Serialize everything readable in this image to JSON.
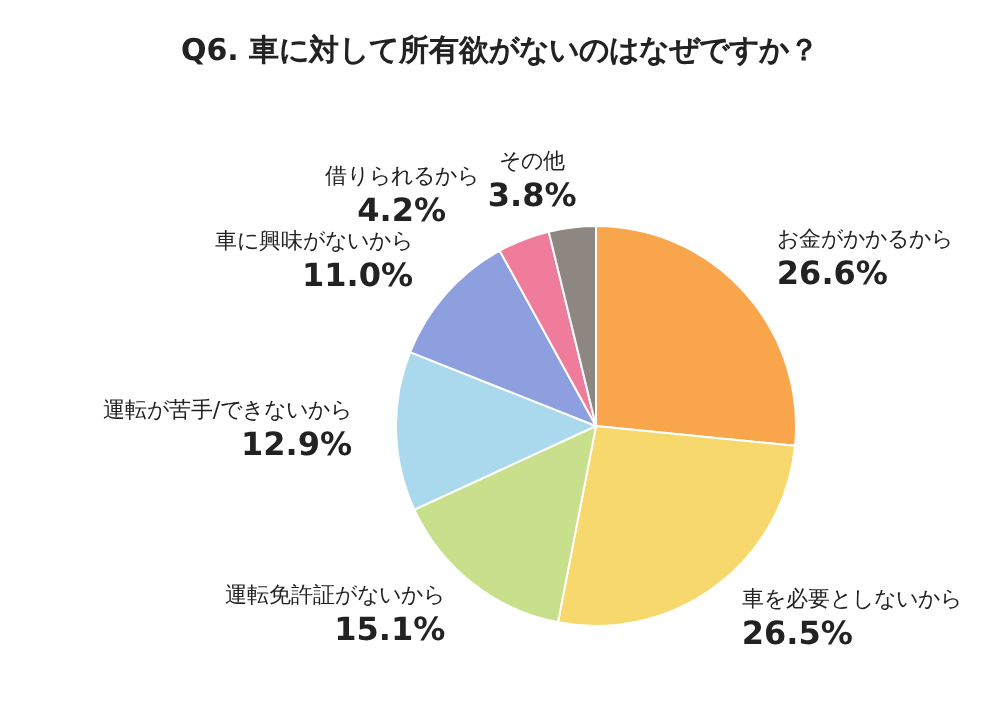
{
  "chart_data": {
    "type": "pie",
    "title": "Q6. 車に対して所有欲がないのはなぜですか？",
    "categories": [
      "お金がかかるから",
      "車を必要としないから",
      "運転免許証がないから",
      "運転が苦手/できないから",
      "車に興味がないから",
      "借りられるから",
      "その他"
    ],
    "values": [
      26.6,
      26.5,
      15.1,
      12.9,
      11.0,
      4.2,
      3.8
    ],
    "value_labels": [
      "26.6%",
      "26.5%",
      "15.1%",
      "12.9%",
      "11.0%",
      "4.2%",
      "3.8%"
    ],
    "colors": [
      "#f9a54c",
      "#f7d86c",
      "#c8df8c",
      "#aad8ec",
      "#8e9fe0",
      "#f07c9c",
      "#8e8680"
    ],
    "legend": false
  }
}
